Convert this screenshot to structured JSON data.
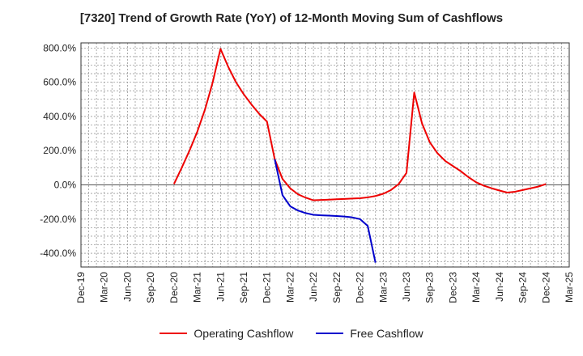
{
  "chart_data": {
    "type": "line",
    "title": "[7320]  Trend of Growth Rate (YoY) of 12-Month Moving Sum of Cashflows",
    "xlabel": "",
    "ylabel": "",
    "ylim": [
      -480,
      830
    ],
    "yticks": [
      -400,
      -200,
      0,
      200,
      400,
      600,
      800
    ],
    "ytick_labels": [
      "-400.0%",
      "-200.0%",
      "0.0%",
      "200.0%",
      "400.0%",
      "600.0%",
      "800.0%"
    ],
    "x_labels": [
      "Dec-19",
      "Mar-20",
      "Jun-20",
      "Sep-20",
      "Dec-20",
      "Mar-21",
      "Jun-21",
      "Sep-21",
      "Dec-21",
      "Mar-22",
      "Jun-22",
      "Sep-22",
      "Dec-22",
      "Mar-23",
      "Jun-23",
      "Sep-23",
      "Dec-23",
      "Mar-24",
      "Jun-24",
      "Sep-24",
      "Dec-24",
      "Mar-25"
    ],
    "grid": true,
    "legend_position": "bottom",
    "series": [
      {
        "name": "Operating Cashflow",
        "color": "#ee0000",
        "x": [
          "2020-12",
          "2021-01",
          "2021-02",
          "2021-03",
          "2021-04",
          "2021-05",
          "2021-06",
          "2021-07",
          "2021-08",
          "2021-09",
          "2021-10",
          "2021-11",
          "2021-12",
          "2022-01",
          "2022-02",
          "2022-03",
          "2022-04",
          "2022-05",
          "2022-06",
          "2022-07",
          "2022-08",
          "2022-09",
          "2022-10",
          "2022-11",
          "2022-12",
          "2023-01",
          "2023-02",
          "2023-03",
          "2023-04",
          "2023-05",
          "2023-06",
          "2023-07",
          "2023-08",
          "2023-09",
          "2023-10",
          "2023-11",
          "2023-12",
          "2024-01",
          "2024-02",
          "2024-03",
          "2024-04",
          "2024-05",
          "2024-06",
          "2024-07",
          "2024-08",
          "2024-09",
          "2024-10",
          "2024-11",
          "2024-12"
        ],
        "values": [
          5,
          100,
          200,
          310,
          440,
          600,
          795,
          690,
          600,
          530,
          470,
          415,
          370,
          150,
          35,
          -20,
          -55,
          -75,
          -90,
          -88,
          -86,
          -84,
          -82,
          -80,
          -78,
          -73,
          -65,
          -52,
          -30,
          5,
          70,
          540,
          360,
          250,
          185,
          140,
          110,
          80,
          45,
          15,
          -5,
          -20,
          -33,
          -45,
          -40,
          -30,
          -20,
          -10,
          5
        ]
      },
      {
        "name": "Free Cashflow",
        "color": "#0000cc",
        "x": [
          "2022-01",
          "2022-02",
          "2022-03",
          "2022-04",
          "2022-05",
          "2022-06",
          "2022-07",
          "2022-08",
          "2022-09",
          "2022-10",
          "2022-11",
          "2022-12",
          "2023-01",
          "2023-02"
        ],
        "values": [
          150,
          -60,
          -125,
          -150,
          -165,
          -175,
          -178,
          -180,
          -182,
          -185,
          -190,
          -200,
          -240,
          -455
        ]
      }
    ]
  }
}
